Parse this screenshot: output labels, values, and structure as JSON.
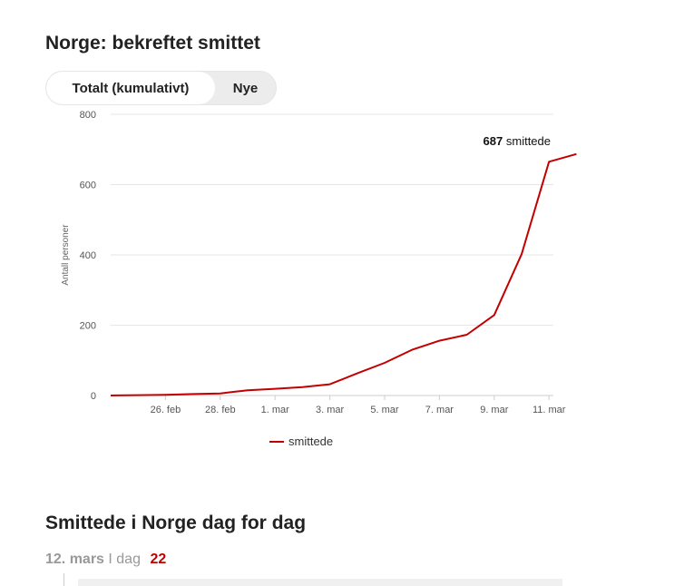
{
  "chart_title": "Norge: bekreftet smittet",
  "tabs": [
    {
      "label": "Totalt (kumulativt)",
      "active": true
    },
    {
      "label": "Nye",
      "active": false
    }
  ],
  "chart_data": {
    "type": "line",
    "ylabel": "Antall personer",
    "ylim": [
      0,
      800
    ],
    "yticks": [
      0,
      200,
      400,
      600,
      800
    ],
    "grid": true,
    "legend": "bottom-center",
    "x_tick_labels": [
      "26. feb",
      "28. feb",
      "1. mar",
      "3. mar",
      "5. mar",
      "7. mar",
      "9. mar",
      "11. mar"
    ],
    "x": [
      "24. feb",
      "25. feb",
      "26. feb",
      "27. feb",
      "28. feb",
      "29. feb",
      "1. mar",
      "2. mar",
      "3. mar",
      "4. mar",
      "5. mar",
      "6. mar",
      "7. mar",
      "8. mar",
      "9. mar",
      "10. mar",
      "11. mar",
      "12. mar"
    ],
    "series": [
      {
        "name": "smittede",
        "color": "#c30000",
        "values": [
          0,
          1,
          2,
          4,
          6,
          15,
          19,
          24,
          32,
          63,
          93,
          130,
          156,
          173,
          229,
          402,
          665,
          687
        ]
      }
    ],
    "annotation": {
      "value": "687",
      "text": "smittede"
    }
  },
  "section2": {
    "title": "Smittede i Norge dag for dag",
    "date": "12. mars",
    "sep": "I dag",
    "count": "22"
  }
}
